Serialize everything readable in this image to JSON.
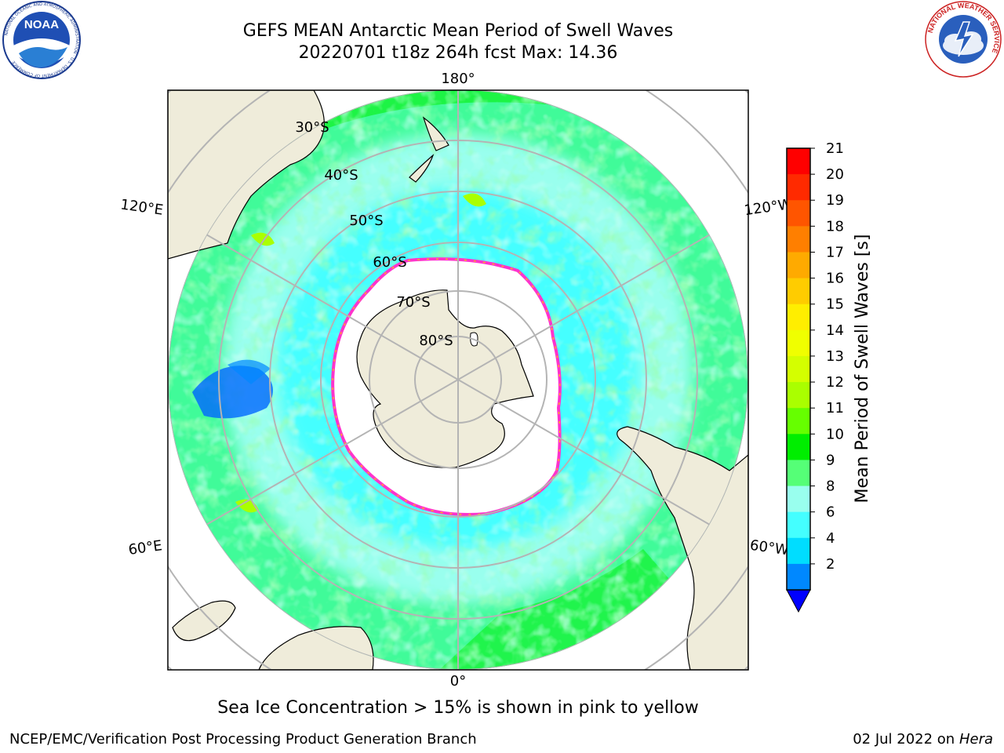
{
  "header": {
    "title_line1": "GEFS MEAN Antarctic Mean Period of Swell Waves",
    "title_line2": "20220701 t18z 264h fcst   Max: 14.36"
  },
  "logos": {
    "noaa_text": "NOAA",
    "noaa_ring_text": "NATIONAL OCEANIC AND ATMOSPHERIC ADMINISTRATION · U.S. DEPARTMENT OF COMMERCE",
    "nws_ring_text": "NATIONAL WEATHER SERVICE"
  },
  "map": {
    "projection": "south polar stereographic",
    "longitude_labels": {
      "top": "180°",
      "bottom": "0°",
      "upper_left": "120°E",
      "upper_right": "120°W",
      "lower_left": "60°E",
      "lower_right": "60°W"
    },
    "latitude_labels": [
      "30°S",
      "40°S",
      "50°S",
      "60°S",
      "70°S",
      "80°S"
    ],
    "colors": {
      "land": "#efecda",
      "sea_ice": "#ffffff",
      "ice_edge": "#ff33cc",
      "graticule": "#b4b4b4"
    }
  },
  "colorbar": {
    "label": "Mean Period of Swell Waves [s]",
    "ticks": [
      "21",
      "20",
      "19",
      "18",
      "17",
      "16",
      "15",
      "14",
      "13",
      "12",
      "11",
      "10",
      "9",
      "8",
      "6",
      "4",
      "2"
    ],
    "bins": [
      {
        "color": "#ff0000"
      },
      {
        "color": "#ff2a00"
      },
      {
        "color": "#ff5500"
      },
      {
        "color": "#ff7f00"
      },
      {
        "color": "#ffaa00"
      },
      {
        "color": "#ffcc00"
      },
      {
        "color": "#ffee00"
      },
      {
        "color": "#f0ff00"
      },
      {
        "color": "#d4ff00"
      },
      {
        "color": "#aaff00"
      },
      {
        "color": "#66ff00"
      },
      {
        "color": "#00ee00"
      },
      {
        "color": "#55ff77"
      },
      {
        "color": "#99ffee"
      },
      {
        "color": "#44ffff"
      },
      {
        "color": "#00ddff"
      },
      {
        "color": "#0088ff"
      }
    ],
    "extend_color": "#0000ff"
  },
  "caption": "Sea Ice Concentration > 15% is shown in pink to yellow",
  "footer": {
    "left": "NCEP/EMC/Verification Post Processing Product Generation Branch",
    "date": "02 Jul 2022 on ",
    "host": "Hera"
  }
}
